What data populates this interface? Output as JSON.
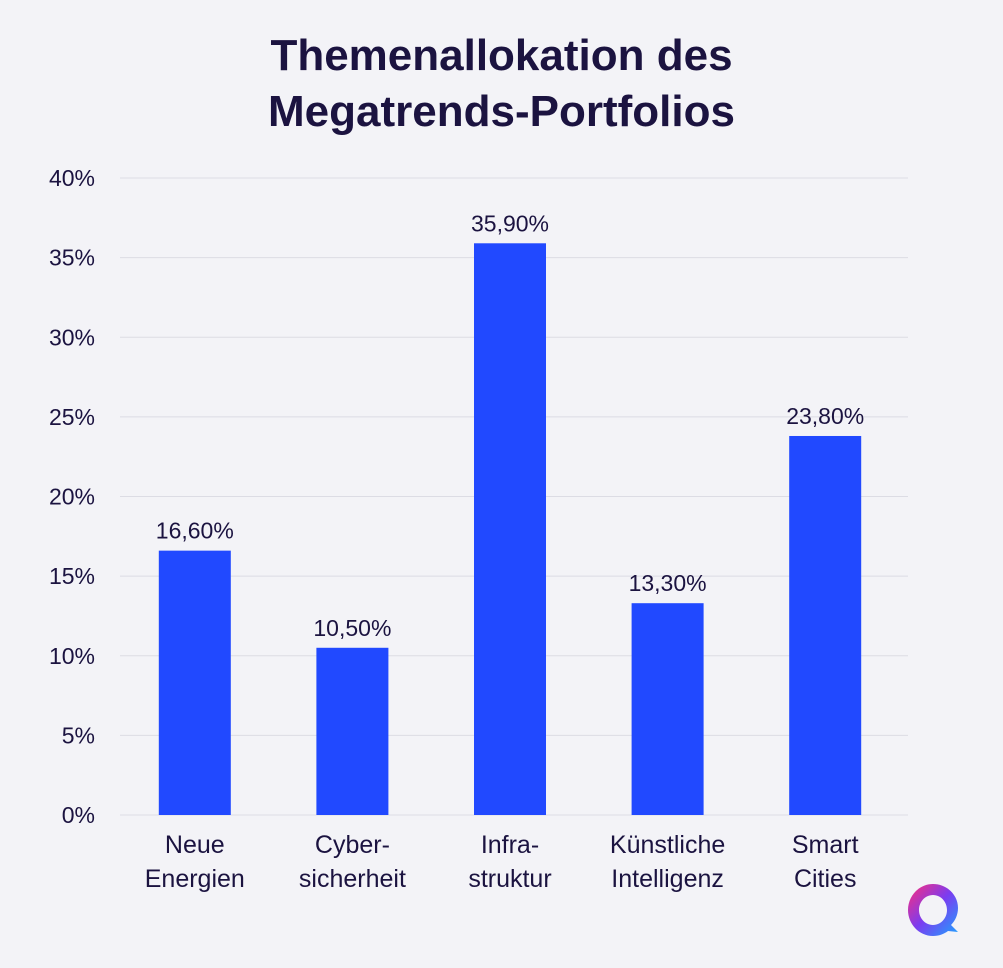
{
  "chart_data": {
    "type": "bar",
    "title_lines": [
      "Themenallokation des",
      "Megatrends-Portfolios"
    ],
    "categories": [
      [
        "Neue",
        "Energien"
      ],
      [
        "Cyber-",
        "sicherheit"
      ],
      [
        "Infra-",
        "struktur"
      ],
      [
        "Künstliche",
        "Intelligenz"
      ],
      [
        "Smart",
        "Cities"
      ]
    ],
    "values": [
      16.6,
      10.5,
      35.9,
      13.3,
      23.8
    ],
    "value_labels": [
      "16,60%",
      "10,50%",
      "35,90%",
      "13,30%",
      "23,80%"
    ],
    "ylim": [
      0,
      40
    ],
    "yticks": [
      0,
      5,
      10,
      15,
      20,
      25,
      30,
      35,
      40
    ],
    "ytick_labels": [
      "0%",
      "5%",
      "10%",
      "15%",
      "20%",
      "25%",
      "30%",
      "35%",
      "40%"
    ],
    "grid": true,
    "bar_color": "#2149ff"
  },
  "logo": {
    "icon": "ring-logo-icon",
    "colors": [
      "#6a3cf0",
      "#ff2d7a",
      "#1fa2ff"
    ]
  }
}
